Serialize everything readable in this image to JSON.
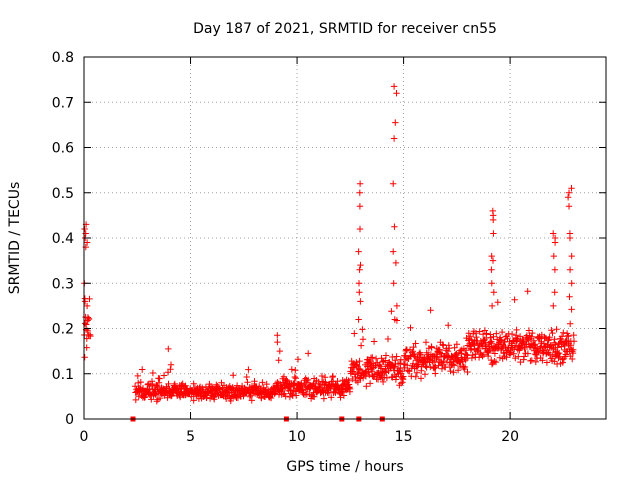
{
  "chart_data": {
    "type": "scatter",
    "title": "Day 187 of 2021, SRMTID for receiver cn55",
    "xlabel": "GPS time / hours",
    "ylabel": "SRMTID / TECUs",
    "xlim": [
      0,
      24.5
    ],
    "ylim": [
      0,
      0.8
    ],
    "x_ticks": [
      0,
      5,
      10,
      15,
      20
    ],
    "y_ticks": [
      0,
      0.1,
      0.2,
      0.3,
      0.4,
      0.5,
      0.6,
      0.7,
      0.8
    ],
    "y_tick_labels": [
      "0",
      "0.1",
      "0.2",
      "0.3",
      "0.4",
      "0.5",
      "0.6",
      "0.7",
      "0.8"
    ],
    "grid": true,
    "marker": "plus",
    "series_color": "#ff0000",
    "zero_markers_x": [
      2.3,
      9.5,
      12.1,
      12.9,
      14.0
    ],
    "baseline_segments": [
      {
        "x_start": 0.0,
        "x_end": 0.3,
        "level": 0.2,
        "amp": 0.1
      },
      {
        "x_start": 2.4,
        "x_end": 9.0,
        "level": 0.06,
        "amp": 0.025
      },
      {
        "x_start": 9.0,
        "x_end": 12.5,
        "level": 0.07,
        "amp": 0.03
      },
      {
        "x_start": 12.5,
        "x_end": 15.0,
        "level": 0.11,
        "amp": 0.05
      },
      {
        "x_start": 15.0,
        "x_end": 18.0,
        "level": 0.13,
        "amp": 0.05
      },
      {
        "x_start": 18.0,
        "x_end": 21.0,
        "level": 0.16,
        "amp": 0.05
      },
      {
        "x_start": 21.0,
        "x_end": 23.0,
        "level": 0.16,
        "amp": 0.06
      }
    ],
    "spikes": [
      {
        "x": 0.1,
        "values": [
          0.43,
          0.42,
          0.41,
          0.4,
          0.39,
          0.38,
          0.3,
          0.26,
          0.25
        ]
      },
      {
        "x": 4.0,
        "values": [
          0.155,
          0.12,
          0.11
        ]
      },
      {
        "x": 9.1,
        "values": [
          0.185,
          0.17,
          0.15,
          0.13
        ]
      },
      {
        "x": 12.9,
        "values": [
          0.52,
          0.5,
          0.47,
          0.42,
          0.37,
          0.34,
          0.33,
          0.3,
          0.28,
          0.26,
          0.22
        ]
      },
      {
        "x": 14.6,
        "values": [
          0.735,
          0.72,
          0.655,
          0.62,
          0.52,
          0.425,
          0.37,
          0.345,
          0.3,
          0.25,
          0.22
        ]
      },
      {
        "x": 19.2,
        "values": [
          0.46,
          0.45,
          0.44,
          0.41,
          0.36,
          0.35,
          0.33,
          0.3,
          0.28,
          0.25
        ]
      },
      {
        "x": 22.1,
        "values": [
          0.41,
          0.4,
          0.39,
          0.36,
          0.33,
          0.28,
          0.25
        ]
      },
      {
        "x": 22.8,
        "values": [
          0.51,
          0.5,
          0.49,
          0.47,
          0.41,
          0.4,
          0.36,
          0.33,
          0.3,
          0.27
        ]
      }
    ]
  }
}
